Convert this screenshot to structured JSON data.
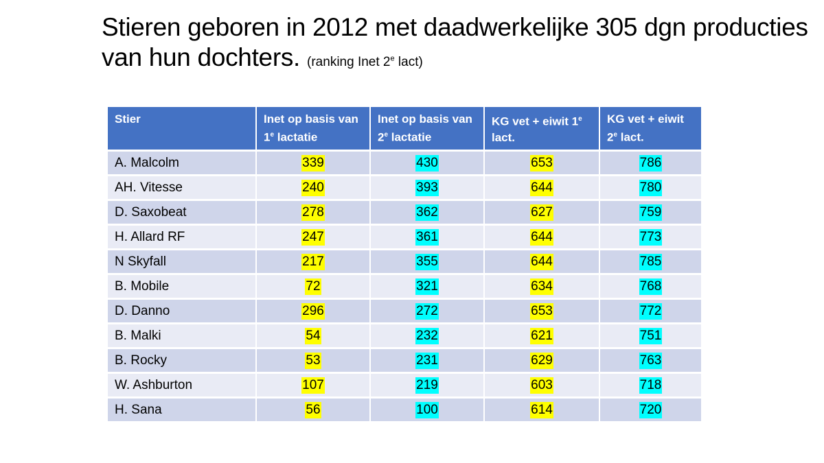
{
  "title": {
    "line1": "Stieren geboren in 2012 met daadwerkelijke 305 dgn producties",
    "line2": "van hun dochters.",
    "note_pre": "(ranking Inet 2",
    "note_sup": "e",
    "note_post": " lact)"
  },
  "table": {
    "headers": [
      {
        "pre": "Stier",
        "sup": "",
        "post": ""
      },
      {
        "pre": "Inet  op basis van 1",
        "sup": "e",
        "post": " lactatie"
      },
      {
        "pre": "Inet  op basis van 2",
        "sup": "e",
        "post": " lactatie"
      },
      {
        "pre": "KG vet + eiwit 1",
        "sup": "e",
        "post": " lact."
      },
      {
        "pre": "KG vet + eiwit 2",
        "sup": "e",
        "post": " lact."
      }
    ],
    "highlight_colors": {
      "yellow": "#ffff00",
      "cyan": "#00ffff"
    },
    "column_highlight": [
      "none",
      "yellow",
      "cyan",
      "yellow",
      "cyan"
    ],
    "rows": [
      {
        "stier": "A. Malcolm",
        "inet1": "339",
        "inet2": "430",
        "kg1": "653",
        "kg2": "786"
      },
      {
        "stier": "AH. Vitesse",
        "inet1": "240",
        "inet2": "393",
        "kg1": "644",
        "kg2": "780"
      },
      {
        "stier": "D. Saxobeat",
        "inet1": "278",
        "inet2": "362",
        "kg1": "627",
        "kg2": "759"
      },
      {
        "stier": "H. Allard RF",
        "inet1": "247",
        "inet2": "361",
        "kg1": "644",
        "kg2": "773"
      },
      {
        "stier": "N Skyfall",
        "inet1": "217",
        "inet2": "355",
        "kg1": "644",
        "kg2": "785"
      },
      {
        "stier": "B. Mobile",
        "inet1": "72",
        "inet2": "321",
        "kg1": "634",
        "kg2": "768"
      },
      {
        "stier": "D. Danno",
        "inet1": "296",
        "inet2": "272",
        "kg1": "653",
        "kg2": "772"
      },
      {
        "stier": "B. Malki",
        "inet1": "54",
        "inet2": "232",
        "kg1": "621",
        "kg2": "751"
      },
      {
        "stier": "B. Rocky",
        "inet1": "53",
        "inet2": "231",
        "kg1": "629",
        "kg2": "763"
      },
      {
        "stier": "W. Ashburton",
        "inet1": "107",
        "inet2": "219",
        "kg1": "603",
        "kg2": "718"
      },
      {
        "stier": "H. Sana",
        "inet1": "56",
        "inet2": "100",
        "kg1": "614",
        "kg2": "720"
      }
    ]
  }
}
